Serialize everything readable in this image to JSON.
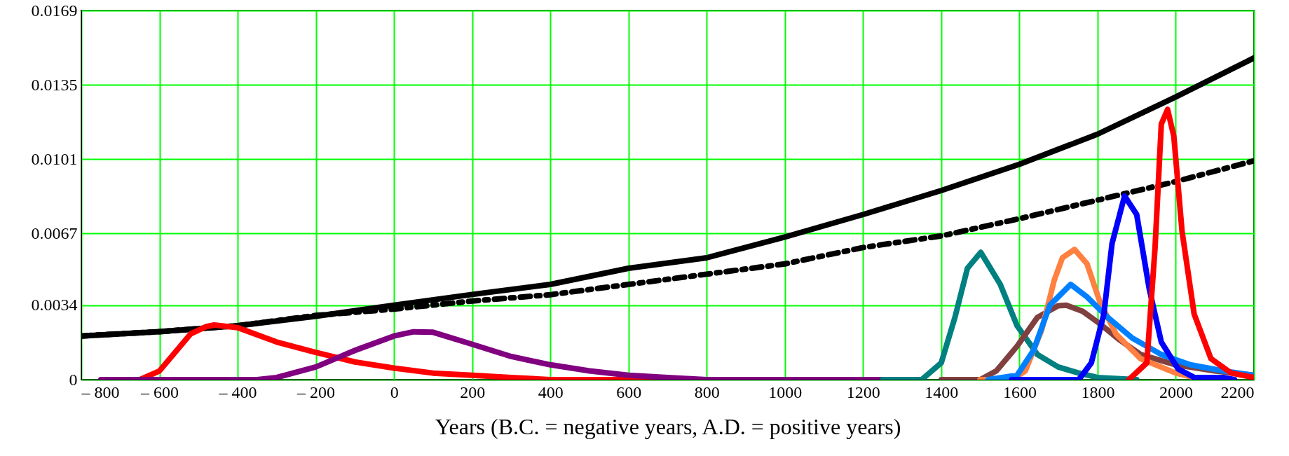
{
  "chart_data": {
    "type": "line",
    "xlabel": "Years (B.C. = negative years, A.D. = positive years)",
    "xlim": [
      -800,
      2200
    ],
    "ylim": [
      0,
      0.0169
    ],
    "xticks": [
      {
        "value": -800,
        "label": "– 800"
      },
      {
        "value": -600,
        "label": "– 600"
      },
      {
        "value": -400,
        "label": "– 400"
      },
      {
        "value": -200,
        "label": "– 200"
      },
      0,
      200,
      400,
      600,
      800,
      1000,
      1200,
      1400,
      1600,
      1800,
      2000,
      2200
    ],
    "yticks": [
      0,
      0.0034,
      0.0067,
      0.0101,
      0.0135,
      0.0169
    ],
    "grid": true,
    "marker": "none",
    "series": [
      {
        "color": "#000000",
        "line_style": "solid",
        "x": [
          -800,
          -600,
          -400,
          -200,
          0,
          200,
          400,
          600,
          800,
          1000,
          1200,
          1400,
          1600,
          1800,
          2000,
          2200
        ],
        "values": [
          0.002,
          0.0022,
          0.00247,
          0.0029,
          0.00341,
          0.0039,
          0.00436,
          0.0051,
          0.00558,
          0.00653,
          0.00756,
          0.00866,
          0.00986,
          0.01124,
          0.01294,
          0.01473
        ]
      },
      {
        "color": "#000000",
        "line_style": "dashed",
        "x": [
          -800,
          -600,
          -400,
          -200,
          0,
          200,
          400,
          600,
          800,
          1000,
          1200,
          1400,
          1600,
          1800,
          2000,
          2200
        ],
        "values": [
          0.002,
          0.0022,
          0.00247,
          0.00294,
          0.00323,
          0.0036,
          0.00389,
          0.00436,
          0.00483,
          0.0053,
          0.00605,
          0.00658,
          0.00737,
          0.00822,
          0.00907,
          0.01002
        ]
      },
      {
        "color": "#ff0000",
        "line_style": "solid",
        "x": [
          -650,
          -600,
          -560,
          -520,
          -480,
          -460,
          -400,
          -300,
          -200,
          -100,
          0,
          100,
          200,
          300,
          400,
          600,
          830
        ],
        "values": [
          0,
          0.0004,
          0.00125,
          0.0021,
          0.00243,
          0.0025,
          0.00238,
          0.00172,
          0.00125,
          0.00081,
          0.00053,
          0.0003,
          0.0002,
          0.0001,
          0,
          0,
          0
        ]
      },
      {
        "color": "#800080",
        "line_style": "solid",
        "x": [
          -750,
          -350,
          -300,
          -200,
          -100,
          0,
          50,
          100,
          200,
          300,
          400,
          500,
          600,
          700,
          800,
          1250
        ],
        "values": [
          0,
          0,
          0.0001,
          0.00058,
          0.00134,
          0.002,
          0.00219,
          0.00217,
          0.00162,
          0.00106,
          0.00068,
          0.0004,
          0.0002,
          0.0001,
          0,
          0
        ]
      },
      {
        "color": "#008080",
        "line_style": "solid",
        "x": [
          1250,
          1350,
          1400,
          1435,
          1467,
          1501,
          1551,
          1594,
          1646,
          1699,
          1752,
          1800,
          1900
        ],
        "values": [
          0,
          0,
          0.00077,
          0.00285,
          0.0051,
          0.00583,
          0.00436,
          0.00247,
          0.00115,
          0.00058,
          0.0003,
          0.0001,
          0
        ]
      },
      {
        "color": "#804040",
        "line_style": "solid",
        "x": [
          1400,
          1500,
          1541,
          1594,
          1646,
          1699,
          1720,
          1762,
          1805,
          1857,
          1910,
          2000,
          2100,
          2200
        ],
        "values": [
          0,
          0,
          0.0004,
          0.00153,
          0.00285,
          0.00338,
          0.00341,
          0.00313,
          0.00257,
          0.00181,
          0.00115,
          0.00068,
          0.0004,
          0.0002
        ]
      },
      {
        "color": "#ff8040",
        "line_style": "solid",
        "x": [
          1499,
          1580,
          1615,
          1657,
          1689,
          1710,
          1741,
          1773,
          1805,
          1847,
          1910,
          2000,
          2047,
          2100
        ],
        "values": [
          0,
          0,
          0.0004,
          0.00228,
          0.00455,
          0.00558,
          0.00596,
          0.0053,
          0.0036,
          0.00209,
          0.00096,
          0.0003,
          0.0001,
          0
        ]
      },
      {
        "color": "#0080ff",
        "line_style": "solid",
        "x": [
          1520,
          1594,
          1636,
          1678,
          1731,
          1773,
          1826,
          1889,
          1963,
          2037,
          2121,
          2200
        ],
        "values": [
          0,
          0.0002,
          0.00134,
          0.00341,
          0.00436,
          0.00379,
          0.00285,
          0.0019,
          0.00115,
          0.00068,
          0.0004,
          0.0002
        ]
      },
      {
        "color": "#0000ff",
        "line_style": "solid",
        "x": [
          1580,
          1752,
          1784,
          1816,
          1837,
          1869,
          1900,
          1932,
          1963,
          2006,
          2047,
          2121,
          2150
        ],
        "values": [
          0,
          0,
          0.00077,
          0.003,
          0.00624,
          0.00841,
          0.00756,
          0.00417,
          0.00172,
          0.00049,
          0.0001,
          0.0001,
          0
        ]
      },
      {
        "color": "#ff0000",
        "line_style": "solid",
        "x": [
          1880,
          1926,
          1947,
          1963,
          1979,
          1995,
          2016,
          2047,
          2090,
          2142,
          2200
        ],
        "values": [
          0,
          0.00077,
          0.00605,
          0.0117,
          0.01237,
          0.01115,
          0.0068,
          0.003,
          0.00096,
          0.0003,
          0.0001
        ]
      }
    ]
  }
}
